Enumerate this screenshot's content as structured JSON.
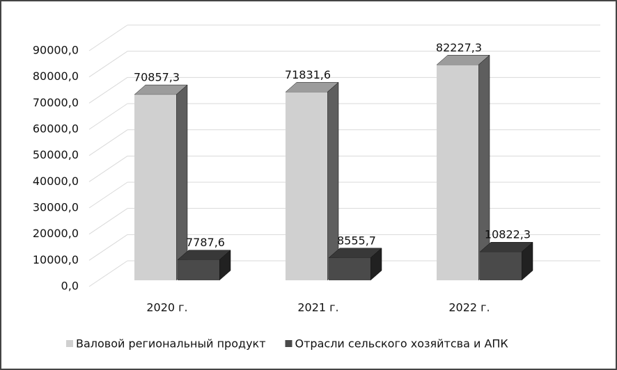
{
  "chart_data": {
    "type": "bar3d",
    "categories": [
      "2020 г.",
      "2021 г.",
      "2022 г."
    ],
    "series": [
      {
        "name": "Валовой региональный продукт",
        "color": "#d0d0d0",
        "values": [
          70857.3,
          71831.6,
          82227.3
        ],
        "value_labels": [
          "70857,3",
          "71831,6",
          "82227,3"
        ]
      },
      {
        "name": "Отрасли сельского хозяйтсва и АПК",
        "color": "#4a4a4a",
        "values": [
          7787.6,
          8555.7,
          10822.3
        ],
        "value_labels": [
          "7787,6",
          "8555,7",
          "10822,3"
        ]
      }
    ],
    "ylim": [
      0,
      90000
    ],
    "yticks": [
      {
        "value": 0,
        "label": "0,0"
      },
      {
        "value": 10000,
        "label": "10000,0"
      },
      {
        "value": 20000,
        "label": "20000,0"
      },
      {
        "value": 30000,
        "label": "30000,0"
      },
      {
        "value": 40000,
        "label": "40000,0"
      },
      {
        "value": 50000,
        "label": "50000,0"
      },
      {
        "value": 60000,
        "label": "60000,0"
      },
      {
        "value": 70000,
        "label": "70000,0"
      },
      {
        "value": 80000,
        "label": "80000,0"
      },
      {
        "value": 90000,
        "label": "90000,0"
      }
    ],
    "grid": true,
    "legend": "bottom"
  }
}
